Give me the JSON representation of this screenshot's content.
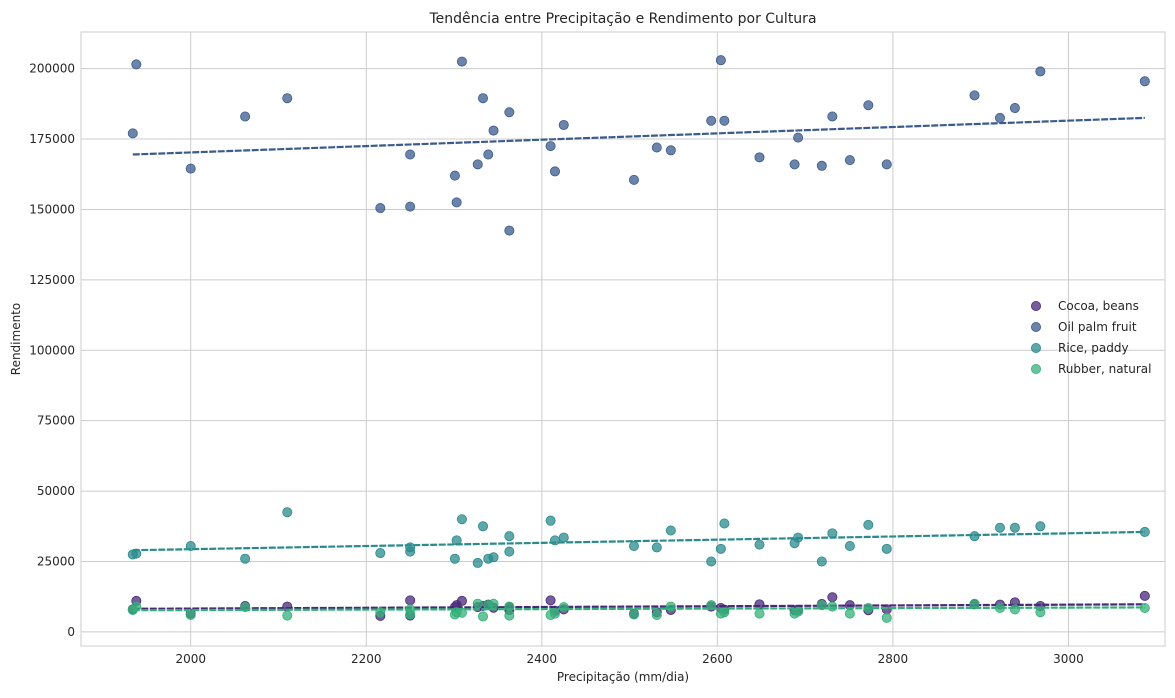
{
  "chart_data": {
    "type": "scatter",
    "title": "Tendência entre Precipitação e Rendimento por Cultura",
    "xlabel": "Precipitação (mm/dia)",
    "ylabel": "Rendimento",
    "xlim": [
      1875,
      3110
    ],
    "ylim": [
      -5000,
      213000
    ],
    "xticks": [
      2000,
      2200,
      2400,
      2600,
      2800,
      3000
    ],
    "yticks": [
      0,
      25000,
      50000,
      75000,
      100000,
      125000,
      150000,
      175000,
      200000
    ],
    "grid": true,
    "legend_position": "center-right",
    "x": [
      1934,
      1938,
      2000,
      2062,
      2110,
      2216,
      2250,
      2250,
      2301,
      2303,
      2309,
      2327,
      2333,
      2339,
      2345,
      2363,
      2363,
      2410,
      2415,
      2425,
      2505,
      2531,
      2547,
      2593,
      2604,
      2608,
      2648,
      2688,
      2692,
      2719,
      2731,
      2751,
      2772,
      2793,
      2893,
      2922,
      2939,
      2968,
      3087
    ],
    "series": [
      {
        "name": "Cocoa, beans",
        "color": "#482878",
        "values": [
          8000,
          11000,
          6500,
          9200,
          9000,
          5700,
          11200,
          5800,
          8800,
          9500,
          11000,
          8800,
          9200,
          9700,
          8600,
          7800,
          8800,
          11200,
          7500,
          8000,
          6500,
          7000,
          7800,
          9000,
          8500,
          7900,
          9800,
          7700,
          7800,
          9900,
          12300,
          9500,
          7700,
          8000,
          9800,
          9700,
          10500,
          9200,
          12800
        ],
        "trend": [
          8200,
          9800
        ]
      },
      {
        "name": "Oil palm fruit",
        "color": "#3b5b8c",
        "values": [
          177000,
          201500,
          164500,
          183000,
          189500,
          150500,
          169500,
          151000,
          162000,
          152500,
          202500,
          166000,
          189500,
          169500,
          178000,
          184500,
          142500,
          172500,
          163500,
          180000,
          160500,
          172000,
          171000,
          181500,
          203000,
          181500,
          168500,
          166000,
          175500,
          165500,
          183000,
          167500,
          187000,
          166000,
          190500,
          182500,
          186000,
          199000,
          195500
        ],
        "trend": [
          169500,
          182500
        ]
      },
      {
        "name": "Rice, paddy",
        "color": "#2a8a8c",
        "values": [
          27500,
          27800,
          30500,
          26000,
          42500,
          28000,
          30000,
          28500,
          26000,
          32500,
          40000,
          24500,
          37500,
          26000,
          26500,
          34000,
          28500,
          39500,
          32500,
          33500,
          30500,
          30000,
          36000,
          25000,
          29500,
          38500,
          31000,
          31500,
          33500,
          25000,
          35000,
          30500,
          38000,
          29500,
          34000,
          37000,
          37000,
          37500,
          35500
        ],
        "trend": [
          29000,
          35500
        ]
      },
      {
        "name": "Rubber, natural",
        "color": "#35b07a",
        "values": [
          7800,
          9000,
          6000,
          8800,
          5800,
          7000,
          8000,
          6200,
          6200,
          7000,
          6800,
          10000,
          5500,
          9500,
          10000,
          5800,
          9000,
          6000,
          6500,
          8800,
          6200,
          6000,
          9000,
          9500,
          6500,
          7000,
          6500,
          6500,
          7200,
          9500,
          9000,
          6500,
          8500,
          5000,
          10000,
          8500,
          8000,
          7000,
          8500
        ],
        "trend": [
          7700,
          8700
        ]
      }
    ]
  }
}
